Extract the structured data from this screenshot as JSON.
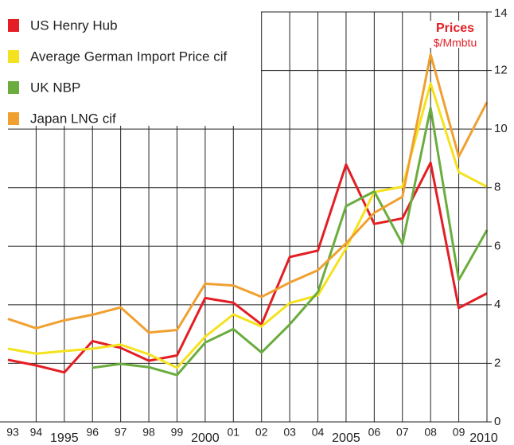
{
  "chart_data": {
    "type": "line",
    "title": "Prices",
    "subtitle": "$/Mmbtu",
    "categories": [
      "93",
      "94",
      "1995",
      "96",
      "97",
      "98",
      "99",
      "2000",
      "01",
      "02",
      "03",
      "04",
      "2005",
      "06",
      "07",
      "08",
      "09",
      "2010"
    ],
    "series": [
      {
        "name": "US Henry Hub",
        "color": "#e31e24",
        "values": [
          2.12,
          1.93,
          1.69,
          2.76,
          2.53,
          2.09,
          2.27,
          4.23,
          4.07,
          3.33,
          5.63,
          5.85,
          8.79,
          6.76,
          6.95,
          8.85,
          3.89,
          4.39
        ]
      },
      {
        "name": "Average German Import Price cif",
        "color": "#f5e21e",
        "values": [
          2.5,
          2.33,
          2.42,
          2.5,
          2.64,
          2.31,
          1.85,
          2.91,
          3.67,
          3.26,
          4.06,
          4.32,
          5.93,
          7.85,
          8.03,
          11.56,
          8.53,
          8.03
        ]
      },
      {
        "name": "UK NBP",
        "color": "#6aad3e",
        "values": [
          null,
          null,
          null,
          1.85,
          1.98,
          1.87,
          1.6,
          2.71,
          3.17,
          2.37,
          3.33,
          4.43,
          7.37,
          7.87,
          6.08,
          10.72,
          4.85,
          6.55
        ]
      },
      {
        "name": "Japan LNG cif",
        "color": "#f0a030",
        "values": [
          3.52,
          3.2,
          3.47,
          3.66,
          3.91,
          3.05,
          3.14,
          4.72,
          4.66,
          4.27,
          4.76,
          5.18,
          6.1,
          7.14,
          7.69,
          12.55,
          9.06,
          10.92
        ]
      }
    ],
    "ylim": [
      0,
      14
    ],
    "yticks": [
      0,
      2,
      4,
      6,
      8,
      10,
      12,
      14
    ],
    "grid": true,
    "legend": "upper left"
  }
}
